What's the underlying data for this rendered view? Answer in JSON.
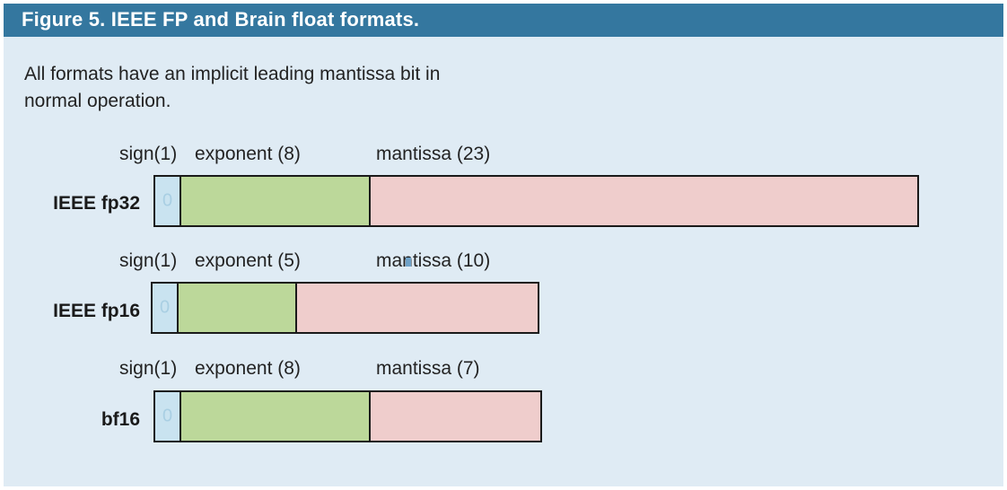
{
  "figure": {
    "title": "Figure 5. IEEE FP and Brain float formats.",
    "caption": "All formats have an implicit leading mantissa bit in normal operation."
  },
  "formats": [
    {
      "name": "IEEE fp32",
      "sign_label": "sign(1)",
      "exponent_label": "exponent (8)",
      "mantissa_label": "mantissa (23)",
      "sign_bits": 1,
      "exponent_bits": 8,
      "mantissa_bits": 23
    },
    {
      "name": "IEEE fp16",
      "sign_label": "sign(1)",
      "exponent_label": "exponent (5)",
      "mantissa_label": "mantissa (10)",
      "sign_bits": 1,
      "exponent_bits": 5,
      "mantissa_bits": 10
    },
    {
      "name": "bf16",
      "sign_label": "sign(1)",
      "exponent_label": "exponent (8)",
      "mantissa_label": "mantissa (7)",
      "sign_bits": 1,
      "exponent_bits": 8,
      "mantissa_bits": 7
    }
  ],
  "colors": {
    "header": "#34779f",
    "background": "#dfebf4",
    "sign": "#c9e3f0",
    "exponent": "#bcd89a",
    "mantissa": "#efcdcc"
  }
}
